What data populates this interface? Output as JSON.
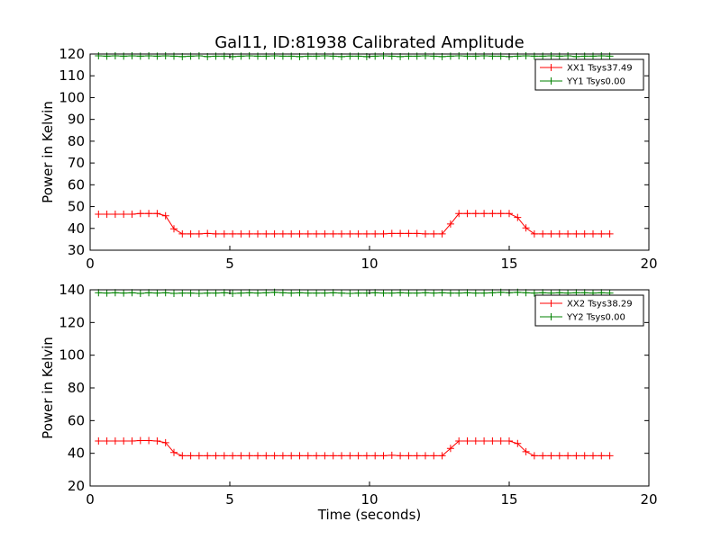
{
  "chart_data": [
    {
      "type": "line",
      "title": "Gal11, ID:81938 Calibrated Amplitude",
      "xlabel": "",
      "ylabel": "Power in Kelvin",
      "xlim": [
        0,
        20
      ],
      "ylim": [
        30,
        120
      ],
      "xticks": [
        0,
        5,
        10,
        15,
        20
      ],
      "yticks": [
        30,
        40,
        50,
        60,
        70,
        80,
        90,
        100,
        110,
        120
      ],
      "grid": false,
      "legend_position": "top-right",
      "series": [
        {
          "name": "XX1 Tsys37.49",
          "color": "#ff0000",
          "x": [
            0.3,
            0.6,
            0.9,
            1.2,
            1.5,
            1.8,
            2.1,
            2.4,
            2.7,
            3.0,
            3.3,
            3.6,
            3.9,
            4.2,
            4.5,
            4.8,
            5.1,
            5.4,
            5.7,
            6.0,
            6.3,
            6.6,
            6.9,
            7.2,
            7.5,
            7.8,
            8.1,
            8.4,
            8.7,
            9.0,
            9.3,
            9.6,
            9.9,
            10.2,
            10.5,
            10.8,
            11.1,
            11.4,
            11.7,
            12.0,
            12.3,
            12.6,
            12.9,
            13.2,
            13.5,
            13.8,
            14.1,
            14.4,
            14.7,
            15.0,
            15.3,
            15.6,
            15.9,
            16.2,
            16.5,
            16.8,
            17.1,
            17.4,
            17.7,
            18.0,
            18.3,
            18.6
          ],
          "y": [
            46.5,
            46.5,
            46.5,
            46.5,
            46.5,
            46.8,
            46.8,
            46.8,
            45.8,
            39.8,
            37.5,
            37.5,
            37.5,
            37.7,
            37.5,
            37.5,
            37.5,
            37.5,
            37.5,
            37.5,
            37.5,
            37.5,
            37.5,
            37.5,
            37.5,
            37.5,
            37.5,
            37.5,
            37.5,
            37.5,
            37.5,
            37.5,
            37.5,
            37.5,
            37.5,
            37.7,
            37.7,
            37.7,
            37.7,
            37.5,
            37.5,
            37.5,
            42.0,
            46.8,
            46.8,
            46.8,
            46.8,
            46.8,
            46.8,
            46.8,
            45.0,
            40.2,
            37.5,
            37.5,
            37.5,
            37.5,
            37.5,
            37.5,
            37.5,
            37.5,
            37.5,
            37.5
          ]
        },
        {
          "name": "YY1 Tsys0.00",
          "color": "#008000",
          "x": [
            0.3,
            0.6,
            0.9,
            1.2,
            1.5,
            1.8,
            2.1,
            2.4,
            2.7,
            3.0,
            3.3,
            3.6,
            3.9,
            4.2,
            4.5,
            4.8,
            5.1,
            5.4,
            5.7,
            6.0,
            6.3,
            6.6,
            6.9,
            7.2,
            7.5,
            7.8,
            8.1,
            8.4,
            8.7,
            9.0,
            9.3,
            9.6,
            9.9,
            10.2,
            10.5,
            10.8,
            11.1,
            11.4,
            11.7,
            12.0,
            12.3,
            12.6,
            12.9,
            13.2,
            13.5,
            13.8,
            14.1,
            14.4,
            14.7,
            15.0,
            15.3,
            15.6,
            15.9,
            16.2,
            16.5,
            16.8,
            17.1,
            17.4,
            17.7,
            18.0,
            18.3,
            18.6
          ],
          "y": [
            119.2,
            119.0,
            119.2,
            119.0,
            119.2,
            119.0,
            119.2,
            119.0,
            119.2,
            119.0,
            118.8,
            119.0,
            119.2,
            118.8,
            119.0,
            119.0,
            118.8,
            119.0,
            119.2,
            119.0,
            119.0,
            119.2,
            119.0,
            119.0,
            118.8,
            119.0,
            119.0,
            119.2,
            119.0,
            118.8,
            119.0,
            119.0,
            118.8,
            119.0,
            119.2,
            119.0,
            118.8,
            119.0,
            119.0,
            119.2,
            119.0,
            118.8,
            119.0,
            119.2,
            119.0,
            119.0,
            119.2,
            119.0,
            119.0,
            118.8,
            119.0,
            119.2,
            119.0,
            119.0,
            119.2,
            119.0,
            119.2,
            118.8,
            119.0,
            119.0,
            119.2,
            119.0
          ]
        }
      ]
    },
    {
      "type": "line",
      "title": "",
      "xlabel": "Time (seconds)",
      "ylabel": "Power in Kelvin",
      "xlim": [
        0,
        20
      ],
      "ylim": [
        20,
        140
      ],
      "xticks": [
        0,
        5,
        10,
        15,
        20
      ],
      "yticks": [
        20,
        40,
        60,
        80,
        100,
        120,
        140
      ],
      "grid": false,
      "legend_position": "top-right",
      "series": [
        {
          "name": "XX2 Tsys38.29",
          "color": "#ff0000",
          "x": [
            0.3,
            0.6,
            0.9,
            1.2,
            1.5,
            1.8,
            2.1,
            2.4,
            2.7,
            3.0,
            3.3,
            3.6,
            3.9,
            4.2,
            4.5,
            4.8,
            5.1,
            5.4,
            5.7,
            6.0,
            6.3,
            6.6,
            6.9,
            7.2,
            7.5,
            7.8,
            8.1,
            8.4,
            8.7,
            9.0,
            9.3,
            9.6,
            9.9,
            10.2,
            10.5,
            10.8,
            11.1,
            11.4,
            11.7,
            12.0,
            12.3,
            12.6,
            12.9,
            13.2,
            13.5,
            13.8,
            14.1,
            14.4,
            14.7,
            15.0,
            15.3,
            15.6,
            15.9,
            16.2,
            16.5,
            16.8,
            17.1,
            17.4,
            17.7,
            18.0,
            18.3,
            18.6
          ],
          "y": [
            47.5,
            47.5,
            47.5,
            47.5,
            47.5,
            47.8,
            47.8,
            47.5,
            46.5,
            40.5,
            38.5,
            38.5,
            38.5,
            38.5,
            38.5,
            38.5,
            38.5,
            38.5,
            38.5,
            38.5,
            38.5,
            38.5,
            38.5,
            38.5,
            38.5,
            38.5,
            38.5,
            38.5,
            38.5,
            38.5,
            38.5,
            38.5,
            38.5,
            38.5,
            38.5,
            38.8,
            38.5,
            38.5,
            38.5,
            38.5,
            38.5,
            38.5,
            43.0,
            47.5,
            47.5,
            47.5,
            47.5,
            47.5,
            47.5,
            47.5,
            46.0,
            41.0,
            38.5,
            38.5,
            38.5,
            38.5,
            38.5,
            38.5,
            38.5,
            38.5,
            38.5,
            38.5
          ]
        },
        {
          "name": "YY2 Tsys0.00",
          "color": "#008000",
          "x": [
            0.3,
            0.6,
            0.9,
            1.2,
            1.5,
            1.8,
            2.1,
            2.4,
            2.7,
            3.0,
            3.3,
            3.6,
            3.9,
            4.2,
            4.5,
            4.8,
            5.1,
            5.4,
            5.7,
            6.0,
            6.3,
            6.6,
            6.9,
            7.2,
            7.5,
            7.8,
            8.1,
            8.4,
            8.7,
            9.0,
            9.3,
            9.6,
            9.9,
            10.2,
            10.5,
            10.8,
            11.1,
            11.4,
            11.7,
            12.0,
            12.3,
            12.6,
            12.9,
            13.2,
            13.5,
            13.8,
            14.1,
            14.4,
            14.7,
            15.0,
            15.3,
            15.6,
            15.9,
            16.2,
            16.5,
            16.8,
            17.1,
            17.4,
            17.7,
            18.0,
            18.3,
            18.6
          ],
          "y": [
            138.2,
            138.0,
            138.2,
            138.0,
            138.2,
            137.8,
            138.2,
            138.0,
            138.2,
            137.8,
            138.0,
            138.0,
            137.8,
            138.0,
            138.0,
            138.2,
            137.8,
            138.0,
            138.2,
            138.0,
            138.2,
            138.5,
            138.2,
            138.0,
            138.2,
            138.0,
            138.0,
            138.0,
            138.2,
            138.0,
            137.8,
            138.0,
            138.0,
            138.2,
            138.0,
            138.0,
            138.2,
            138.0,
            138.0,
            138.2,
            138.0,
            138.2,
            138.0,
            138.0,
            138.2,
            138.0,
            138.0,
            138.2,
            138.5,
            138.2,
            138.5,
            138.2,
            138.0,
            138.2,
            138.0,
            138.2,
            138.0,
            138.2,
            138.2,
            138.0,
            138.2,
            138.0
          ]
        }
      ]
    }
  ]
}
